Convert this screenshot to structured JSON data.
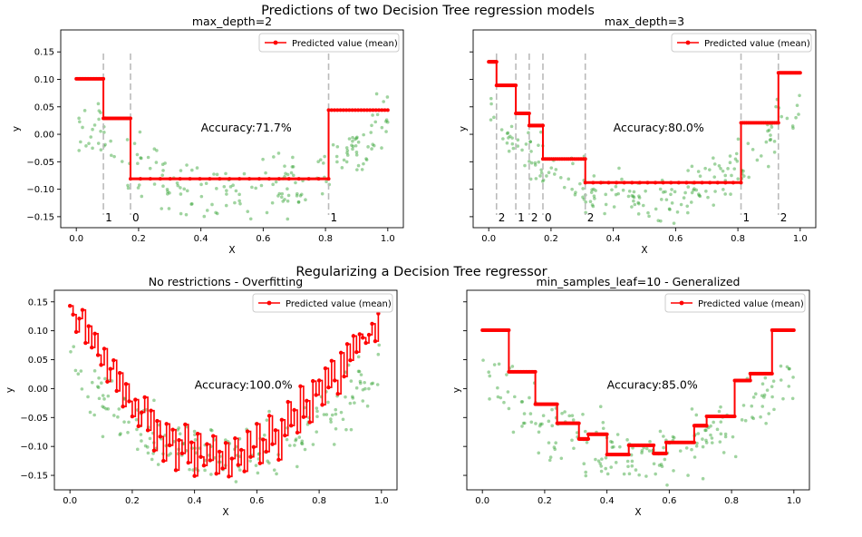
{
  "figure_titles": {
    "top": "Predictions of two Decision Tree regression models",
    "bottom": "Regularizing a Decision Tree regressor"
  },
  "legend_label": "Predicted value (mean)",
  "colors": {
    "prediction": "#ff0000",
    "points": "#2ca02c",
    "split": "#bbbbbb"
  },
  "chart_data": [
    {
      "type": "line",
      "title": "max_depth=2",
      "xlabel": "X",
      "ylabel": "y",
      "xlim": [
        -0.05,
        1.05
      ],
      "ylim": [
        -0.17,
        0.19
      ],
      "xticks": [
        0.0,
        0.2,
        0.4,
        0.6,
        0.8,
        1.0
      ],
      "xtick_labels": [
        "0.0",
        "0.2",
        "0.4",
        "0.6",
        "0.8",
        "1.0"
      ],
      "yticks": [
        -0.15,
        -0.1,
        -0.05,
        0.0,
        0.05,
        0.1,
        0.15
      ],
      "ytick_labels": [
        "−0.15",
        "−0.10",
        "−0.05",
        "0.00",
        "0.05",
        "0.10",
        "0.15"
      ],
      "show_ytick_labels": true,
      "legend": "top-right",
      "annotation": "Accuracy:71.7%",
      "annotation_at": [
        0.4,
        0.005
      ],
      "splits": [
        {
          "x": 0.087,
          "label": "1"
        },
        {
          "x": 0.174,
          "label": "0"
        },
        {
          "x": 0.81,
          "label": "1"
        }
      ],
      "steps": [
        {
          "x0": 0.0,
          "x1": 0.087,
          "y": 0.101
        },
        {
          "x0": 0.087,
          "x1": 0.174,
          "y": 0.029
        },
        {
          "x0": 0.174,
          "x1": 0.81,
          "y": -0.081
        },
        {
          "x0": 0.81,
          "x1": 1.0,
          "y": 0.044
        }
      ]
    },
    {
      "type": "line",
      "title": "max_depth=3",
      "xlabel": "X",
      "ylabel": "y",
      "xlim": [
        -0.05,
        1.05
      ],
      "ylim": [
        -0.17,
        0.19
      ],
      "xticks": [
        0.0,
        0.2,
        0.4,
        0.6,
        0.8,
        1.0
      ],
      "xtick_labels": [
        "0.0",
        "0.2",
        "0.4",
        "0.6",
        "0.8",
        "1.0"
      ],
      "yticks": [
        -0.15,
        -0.1,
        -0.05,
        0.0,
        0.05,
        0.1,
        0.15
      ],
      "ytick_labels": [],
      "show_ytick_labels": false,
      "legend": "top-right",
      "annotation": "Accuracy:80.0%",
      "annotation_at": [
        0.4,
        0.005
      ],
      "splits": [
        {
          "x": 0.025,
          "label": "2"
        },
        {
          "x": 0.087,
          "label": "1"
        },
        {
          "x": 0.13,
          "label": "2"
        },
        {
          "x": 0.174,
          "label": "0"
        },
        {
          "x": 0.31,
          "label": "2"
        },
        {
          "x": 0.81,
          "label": "1"
        },
        {
          "x": 0.93,
          "label": "2"
        }
      ],
      "steps": [
        {
          "x0": 0.0,
          "x1": 0.025,
          "y": 0.132
        },
        {
          "x0": 0.025,
          "x1": 0.087,
          "y": 0.089
        },
        {
          "x0": 0.087,
          "x1": 0.13,
          "y": 0.038
        },
        {
          "x0": 0.13,
          "x1": 0.174,
          "y": 0.016
        },
        {
          "x0": 0.174,
          "x1": 0.31,
          "y": -0.045
        },
        {
          "x0": 0.31,
          "x1": 0.81,
          "y": -0.088
        },
        {
          "x0": 0.81,
          "x1": 0.93,
          "y": 0.021
        },
        {
          "x0": 0.93,
          "x1": 1.0,
          "y": 0.112
        }
      ]
    },
    {
      "type": "line",
      "title": "No restrictions - Overfitting",
      "xlabel": "X",
      "ylabel": "y",
      "xlim": [
        -0.05,
        1.05
      ],
      "ylim": [
        -0.175,
        0.17
      ],
      "xticks": [
        0.0,
        0.2,
        0.4,
        0.6,
        0.8,
        1.0
      ],
      "xtick_labels": [
        "0.0",
        "0.2",
        "0.4",
        "0.6",
        "0.8",
        "1.0"
      ],
      "yticks": [
        -0.15,
        -0.1,
        -0.05,
        0.0,
        0.05,
        0.1,
        0.15
      ],
      "ytick_labels": [
        "−0.15",
        "−0.10",
        "−0.05",
        "0.00",
        "0.05",
        "0.10",
        "0.15"
      ],
      "show_ytick_labels": true,
      "legend": "top-right",
      "annotation": "Accuracy:100.0%",
      "annotation_at": [
        0.4,
        0.0
      ],
      "overfit_series": {
        "x": [
          0.0,
          0.01,
          0.02,
          0.03,
          0.04,
          0.05,
          0.06,
          0.07,
          0.08,
          0.09,
          0.1,
          0.11,
          0.12,
          0.13,
          0.14,
          0.15,
          0.16,
          0.17,
          0.18,
          0.19,
          0.2,
          0.21,
          0.22,
          0.23,
          0.24,
          0.25,
          0.26,
          0.27,
          0.28,
          0.29,
          0.3,
          0.31,
          0.32,
          0.33,
          0.34,
          0.35,
          0.36,
          0.37,
          0.38,
          0.39,
          0.4,
          0.41,
          0.42,
          0.43,
          0.44,
          0.45,
          0.46,
          0.47,
          0.48,
          0.49,
          0.5,
          0.51,
          0.52,
          0.53,
          0.54,
          0.55,
          0.56,
          0.57,
          0.58,
          0.59,
          0.6,
          0.61,
          0.62,
          0.63,
          0.64,
          0.65,
          0.66,
          0.67,
          0.68,
          0.69,
          0.7,
          0.71,
          0.72,
          0.73,
          0.74,
          0.75,
          0.76,
          0.77,
          0.78,
          0.79,
          0.8,
          0.81,
          0.82,
          0.83,
          0.84,
          0.85,
          0.86,
          0.87,
          0.88,
          0.89,
          0.9,
          0.91,
          0.92,
          0.93,
          0.94,
          0.95,
          0.96,
          0.97,
          0.98,
          0.99
        ],
        "y": [
          0.143,
          0.128,
          0.098,
          0.121,
          0.136,
          0.079,
          0.108,
          0.071,
          0.095,
          0.058,
          0.041,
          0.069,
          0.012,
          0.034,
          0.049,
          -0.004,
          0.027,
          -0.031,
          0.008,
          -0.022,
          -0.048,
          -0.019,
          -0.065,
          -0.041,
          -0.015,
          -0.072,
          -0.038,
          -0.107,
          -0.056,
          -0.083,
          -0.125,
          -0.061,
          -0.098,
          -0.071,
          -0.141,
          -0.089,
          -0.112,
          -0.062,
          -0.128,
          -0.093,
          -0.151,
          -0.078,
          -0.118,
          -0.133,
          -0.096,
          -0.124,
          -0.082,
          -0.147,
          -0.109,
          -0.138,
          -0.094,
          -0.152,
          -0.121,
          -0.086,
          -0.132,
          -0.106,
          -0.143,
          -0.074,
          -0.118,
          -0.101,
          -0.061,
          -0.129,
          -0.088,
          -0.109,
          -0.047,
          -0.096,
          -0.072,
          -0.123,
          -0.054,
          -0.081,
          -0.023,
          -0.064,
          -0.037,
          -0.076,
          0.004,
          -0.049,
          -0.021,
          -0.058,
          0.013,
          -0.011,
          0.014,
          -0.028,
          0.035,
          0.002,
          0.048,
          0.014,
          -0.009,
          0.062,
          0.021,
          0.077,
          0.049,
          0.091,
          0.063,
          0.094,
          0.088,
          0.079,
          0.093,
          0.112,
          0.082,
          0.13
        ]
      }
    },
    {
      "type": "line",
      "title": "min_samples_leaf=10 - Generalized",
      "xlabel": "X",
      "ylabel": "y",
      "xlim": [
        -0.05,
        1.05
      ],
      "ylim": [
        -0.175,
        0.17
      ],
      "xticks": [
        0.0,
        0.2,
        0.4,
        0.6,
        0.8,
        1.0
      ],
      "xtick_labels": [
        "0.0",
        "0.2",
        "0.4",
        "0.6",
        "0.8",
        "1.0"
      ],
      "yticks": [
        -0.15,
        -0.1,
        -0.05,
        0.0,
        0.05,
        0.1,
        0.15
      ],
      "ytick_labels": [],
      "show_ytick_labels": false,
      "legend": "top-right",
      "annotation": "Accuracy:85.0%",
      "annotation_at": [
        0.4,
        0.0
      ],
      "steps": [
        {
          "x0": 0.0,
          "x1": 0.085,
          "y": 0.101
        },
        {
          "x0": 0.085,
          "x1": 0.17,
          "y": 0.029
        },
        {
          "x0": 0.17,
          "x1": 0.24,
          "y": -0.027
        },
        {
          "x0": 0.24,
          "x1": 0.31,
          "y": -0.06
        },
        {
          "x0": 0.31,
          "x1": 0.34,
          "y": -0.087
        },
        {
          "x0": 0.34,
          "x1": 0.4,
          "y": -0.079
        },
        {
          "x0": 0.4,
          "x1": 0.47,
          "y": -0.114
        },
        {
          "x0": 0.47,
          "x1": 0.55,
          "y": -0.098
        },
        {
          "x0": 0.55,
          "x1": 0.59,
          "y": -0.112
        },
        {
          "x0": 0.59,
          "x1": 0.68,
          "y": -0.093
        },
        {
          "x0": 0.68,
          "x1": 0.72,
          "y": -0.064
        },
        {
          "x0": 0.72,
          "x1": 0.81,
          "y": -0.048
        },
        {
          "x0": 0.81,
          "x1": 0.86,
          "y": 0.014
        },
        {
          "x0": 0.86,
          "x1": 0.93,
          "y": 0.026
        },
        {
          "x0": 0.93,
          "x1": 1.0,
          "y": 0.101
        }
      ]
    }
  ]
}
